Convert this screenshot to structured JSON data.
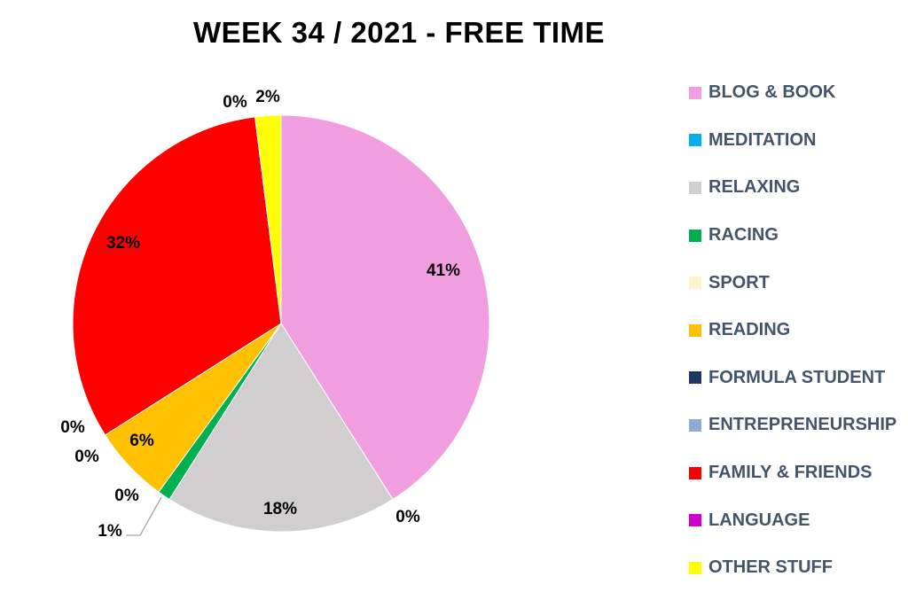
{
  "chart_data": {
    "type": "pie",
    "title": "WEEK 34 / 2021 - FREE TIME",
    "slices": [
      {
        "name": "BLOG & BOOK",
        "value": 41,
        "label": "41%",
        "color": "#f09ee0"
      },
      {
        "name": "MEDITATION",
        "value": 0,
        "label": "0%",
        "color": "#00b0f0"
      },
      {
        "name": "RELAXING",
        "value": 18,
        "label": "18%",
        "color": "#d0cece"
      },
      {
        "name": "RACING",
        "value": 1,
        "label": "1%",
        "color": "#00b050"
      },
      {
        "name": "SPORT",
        "value": 0,
        "label": "0%",
        "color": "#fff2cc"
      },
      {
        "name": "READING",
        "value": 6,
        "label": "6%",
        "color": "#ffc000"
      },
      {
        "name": "FORMULA STUDENT",
        "value": 0,
        "label": "0%",
        "color": "#1f3864"
      },
      {
        "name": "ENTREPRENEURSHIP",
        "value": 0,
        "label": "0%",
        "color": "#8eaadb"
      },
      {
        "name": "FAMILY & FRIENDS",
        "value": 32,
        "label": "32%",
        "color": "#ff0000"
      },
      {
        "name": "LANGUAGE",
        "value": 0,
        "label": "0%",
        "color": "#cc00cc"
      },
      {
        "name": "OTHER STUFF",
        "value": 2,
        "label": "2%",
        "color": "#ffff00"
      }
    ],
    "legend_position": "right"
  }
}
